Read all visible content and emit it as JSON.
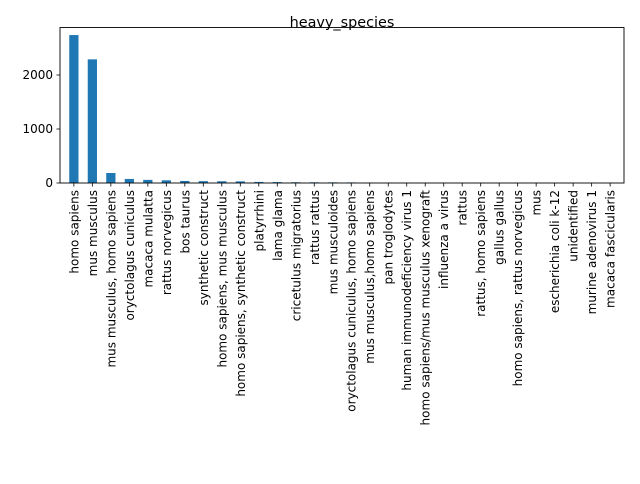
{
  "chart_data": {
    "type": "bar",
    "title": "heavy_species",
    "xlabel": "",
    "ylabel": "",
    "ylim": [
      0,
      2880
    ],
    "yticks": [
      0,
      1000,
      2000
    ],
    "ytick_labels": [
      "0",
      "1000",
      "2000"
    ],
    "grid": false,
    "legend": "none",
    "bar_color": "#1f77b4",
    "categories": [
      "homo sapiens",
      "mus musculus",
      "mus musculus, homo sapiens",
      "oryctolagus cuniculus",
      "macaca mulatta",
      "rattus norvegicus",
      "bos taurus",
      "synthetic construct",
      "homo sapiens, mus musculus",
      "homo sapiens, synthetic construct",
      "platyrrhini",
      "lama glama",
      "cricetulus migratorius",
      "rattus rattus",
      "mus musculoides",
      "oryctolagus cuniculus, homo sapiens",
      "mus musculus,homo sapiens",
      "pan troglodytes",
      "human immunodeficiency virus 1",
      "homo sapiens/mus musculus xenograft",
      "influenza a virus",
      "rattus",
      "rattus, homo sapiens",
      "gallus gallus",
      "homo sapiens, rattus norvegicus",
      "mus",
      "escherichia coli k-12",
      "unidentified",
      "murine adenovirus 1",
      "macaca fascicularis"
    ],
    "values": [
      2740,
      2290,
      185,
      75,
      58,
      50,
      38,
      34,
      32,
      30,
      20,
      17,
      14,
      13,
      12,
      11,
      8,
      7,
      6,
      5,
      5,
      4,
      4,
      3,
      3,
      3,
      2,
      2,
      2,
      1
    ]
  }
}
